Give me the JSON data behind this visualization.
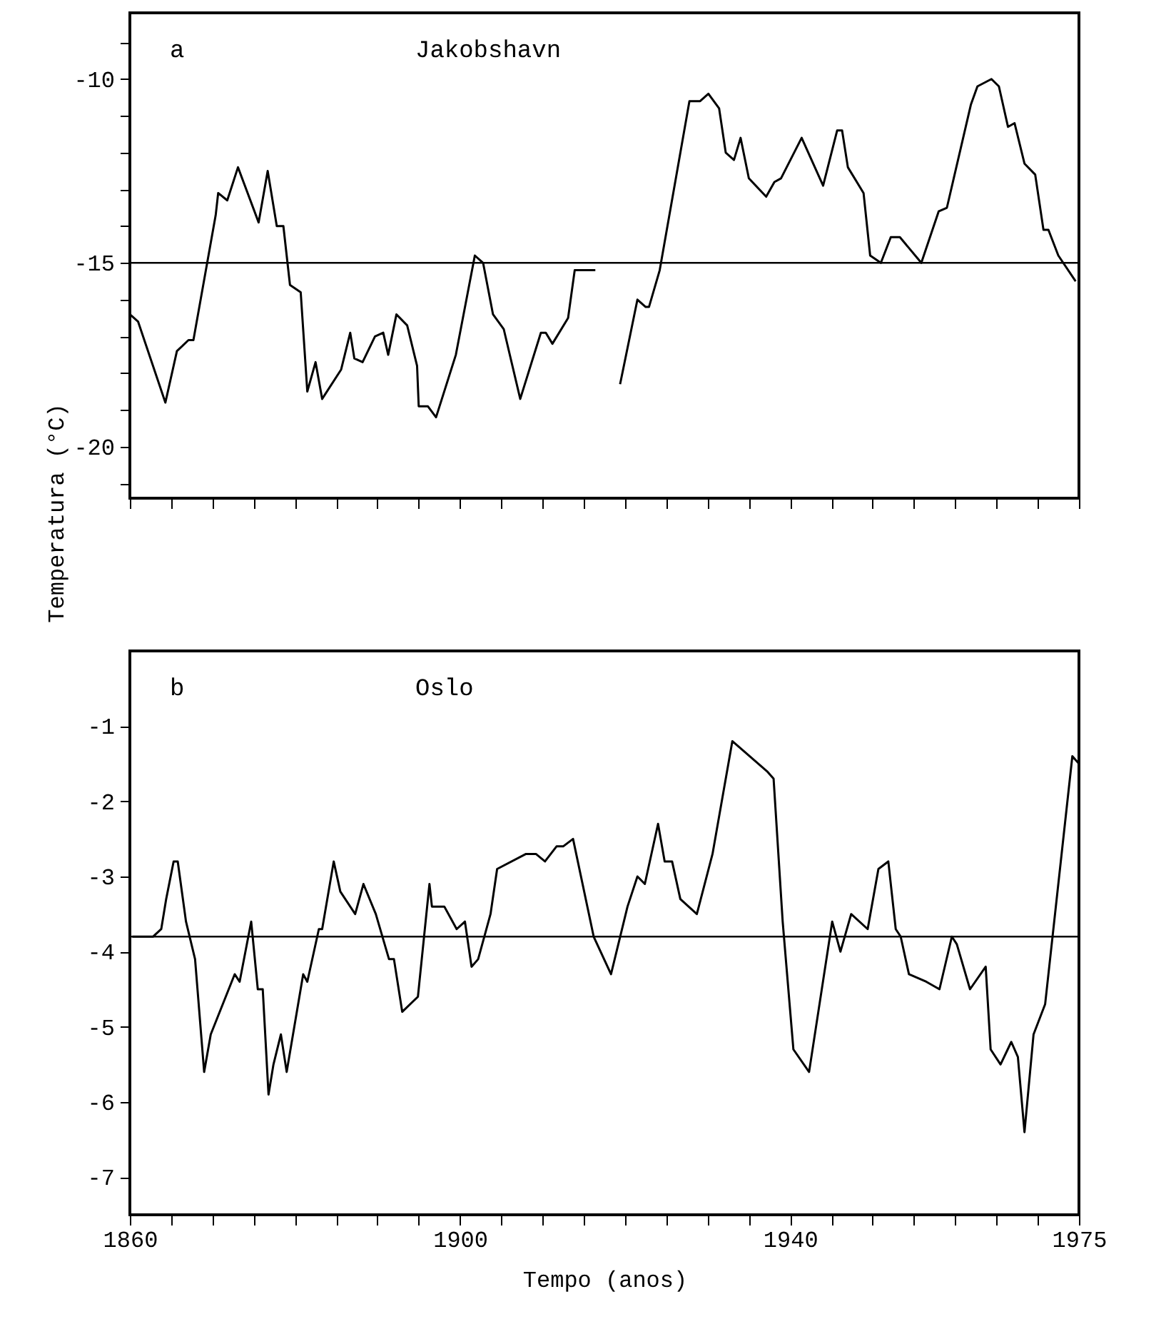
{
  "chart_data": [
    {
      "type": "line",
      "title": "Jakobshavn",
      "annotations": [
        "a"
      ],
      "ylabel": "Temperatura (°C)",
      "xlim": [
        1860,
        1975
      ],
      "xticks": [
        {
          "value": 1860,
          "label": null
        },
        {
          "value": 1865,
          "label": null
        },
        {
          "value": 1870,
          "label": null
        },
        {
          "value": 1875,
          "label": null
        },
        {
          "value": 1880,
          "label": null
        },
        {
          "value": 1885,
          "label": null
        },
        {
          "value": 1890,
          "label": null
        },
        {
          "value": 1895,
          "label": null
        },
        {
          "value": 1900,
          "label": null
        },
        {
          "value": 1905,
          "label": null
        },
        {
          "value": 1910,
          "label": null
        },
        {
          "value": 1915,
          "label": null
        },
        {
          "value": 1920,
          "label": null
        },
        {
          "value": 1925,
          "label": null
        },
        {
          "value": 1930,
          "label": null
        },
        {
          "value": 1935,
          "label": null
        },
        {
          "value": 1940,
          "label": null
        },
        {
          "value": 1945,
          "label": null
        },
        {
          "value": 1950,
          "label": null
        },
        {
          "value": 1955,
          "label": null
        },
        {
          "value": 1960,
          "label": null
        },
        {
          "value": 1965,
          "label": null
        },
        {
          "value": 1970,
          "label": null
        },
        {
          "value": 1975,
          "label": null
        }
      ],
      "ylim": [
        -21.4,
        -8.2
      ],
      "yticks": [
        {
          "value": -21,
          "label": null
        },
        -20,
        {
          "value": -19,
          "label": null
        },
        {
          "value": -18,
          "label": null
        },
        {
          "value": -17,
          "label": null
        },
        {
          "value": -16,
          "label": null
        },
        -15,
        {
          "value": -14,
          "label": null
        },
        {
          "value": -13,
          "label": null
        },
        {
          "value": -12,
          "label": null
        },
        {
          "value": -11,
          "label": null
        },
        -10,
        {
          "value": -9,
          "label": null
        }
      ],
      "tick_labels": "y",
      "grid": false,
      "marker": "none",
      "line_style": "solid",
      "ref_lines": [
        {
          "axis": "y",
          "value": -15,
          "color": "#000000"
        }
      ],
      "x": [
        1860,
        1861,
        1864.3,
        1865.7,
        1867.1,
        1867.7,
        1870.4,
        1870.7,
        1871.8,
        1873.1,
        1875.6,
        1876.7,
        1877.8,
        1878.6,
        1879.4,
        1880.7,
        1881.5,
        1882.5,
        1883.3,
        1885.6,
        1886.7,
        1887.2,
        1888.2,
        1889.7,
        1890.7,
        1891.3,
        1892.3,
        1893.6,
        1894.8,
        1895,
        1896.1,
        1897.1,
        1899.5,
        1901.8,
        1902.8,
        1904,
        1905.3,
        1907.3,
        1909.8,
        1910.4,
        1911.2,
        1913.1,
        1913.9,
        1916.4,
        1918,
        1919.4,
        1921.5,
        1922.5,
        1922.9,
        1924.2,
        1927.8,
        1929.1,
        1930.1,
        1931.4,
        1932.2,
        1933.2,
        1934,
        1935,
        1937.1,
        1938.1,
        1938.9,
        1941.4,
        1944,
        1945.7,
        1946.3,
        1947,
        1948.9,
        1949.7,
        1951,
        1952.2,
        1953.3,
        1955.9,
        1958,
        1959,
        1961.9,
        1962.7,
        1964.4,
        1965.3,
        1966.4,
        1967.2,
        1968.4,
        1969.7,
        1970.7,
        1971.3,
        1972.5,
        1974.6
      ],
      "series": [
        {
          "color": "#000000",
          "values": [
            -16.4,
            -16.6,
            -18.8,
            -17.4,
            -17.1,
            -17.1,
            -13.7,
            -13.1,
            -13.3,
            -12.4,
            -13.9,
            -12.5,
            -14.0,
            -14.0,
            -15.6,
            -15.8,
            -18.5,
            -17.7,
            -18.7,
            -17.9,
            -16.9,
            -17.6,
            -17.7,
            -17.0,
            -16.9,
            -17.5,
            -16.4,
            -16.7,
            -17.8,
            -18.9,
            -18.9,
            -19.2,
            -17.5,
            -14.8,
            -15.0,
            -16.4,
            -16.8,
            -18.7,
            -16.9,
            -16.9,
            -17.2,
            -16.5,
            -15.2,
            -15.2,
            null,
            -18.3,
            -16.0,
            -16.2,
            -16.2,
            -15.2,
            -10.6,
            -10.6,
            -10.4,
            -10.8,
            -12.0,
            -12.2,
            -11.6,
            -12.7,
            -13.2,
            -12.8,
            -12.7,
            -11.6,
            -12.9,
            -11.4,
            -11.4,
            -12.4,
            -13.1,
            -14.8,
            -15.0,
            -14.3,
            -14.3,
            -15.0,
            -13.6,
            -13.5,
            -10.7,
            -10.2,
            -10.0,
            -10.2,
            -11.3,
            -11.2,
            -12.3,
            -12.6,
            -14.1,
            -14.1,
            -14.8,
            -15.5
          ]
        }
      ]
    },
    {
      "type": "line",
      "title": "Oslo",
      "annotations": [
        "b"
      ],
      "xlabel": "Tempo (anos)",
      "xlim": [
        1860,
        1975
      ],
      "xticks": [
        1860,
        {
          "value": 1865,
          "label": null
        },
        {
          "value": 1870,
          "label": null
        },
        {
          "value": 1875,
          "label": null
        },
        {
          "value": 1880,
          "label": null
        },
        {
          "value": 1885,
          "label": null
        },
        {
          "value": 1890,
          "label": null
        },
        {
          "value": 1895,
          "label": null
        },
        1900,
        {
          "value": 1905,
          "label": null
        },
        {
          "value": 1910,
          "label": null
        },
        {
          "value": 1915,
          "label": null
        },
        {
          "value": 1920,
          "label": null
        },
        {
          "value": 1925,
          "label": null
        },
        {
          "value": 1930,
          "label": null
        },
        {
          "value": 1935,
          "label": null
        },
        1940,
        {
          "value": 1945,
          "label": null
        },
        {
          "value": 1950,
          "label": null
        },
        {
          "value": 1955,
          "label": null
        },
        {
          "value": 1960,
          "label": null
        },
        {
          "value": 1965,
          "label": null
        },
        {
          "value": 1970,
          "label": null
        },
        1975
      ],
      "ylim": [
        -7.5,
        0
      ],
      "yticks": [
        -7,
        -6,
        -5,
        -4,
        -3,
        -2,
        -1
      ],
      "grid": false,
      "marker": "none",
      "line_style": "solid",
      "ref_lines": [
        {
          "axis": "y",
          "value": -3.8,
          "color": "#000000"
        }
      ],
      "x": [
        1860.3,
        1862.8,
        1863.8,
        1864.4,
        1865.3,
        1865.8,
        1866.8,
        1867.9,
        1869,
        1869.8,
        1872.7,
        1873.3,
        1874.7,
        1875.5,
        1876.1,
        1876.8,
        1877.4,
        1878.3,
        1879,
        1881,
        1881.5,
        1882.9,
        1883.3,
        1884.7,
        1885.5,
        1887.3,
        1888.3,
        1889.8,
        1891.4,
        1892,
        1893,
        1894.9,
        1896.3,
        1896.6,
        1897.3,
        1898.1,
        1899.6,
        1900.6,
        1901.4,
        1902.2,
        1903.7,
        1904.5,
        1908,
        1909.2,
        1910.3,
        1911.7,
        1912.5,
        1913.7,
        1916.2,
        1918.3,
        1920.3,
        1921.5,
        1922.4,
        1924,
        1924.8,
        1925.7,
        1926.7,
        1928.7,
        1930.6,
        1933,
        1937.2,
        1938,
        1939.1,
        1940.4,
        1942.3,
        1945.1,
        1946.1,
        1947.4,
        1949.4,
        1950.7,
        1951.9,
        1952.8,
        1953.4,
        1954.4,
        1956.5,
        1958.1,
        1959.6,
        1960.2,
        1961.8,
        1963.7,
        1964.3,
        1965.5,
        1966.8,
        1967.6,
        1968.4,
        1969.5,
        1970.9,
        1974.2,
        1975
      ],
      "series": [
        {
          "color": "#000000",
          "values": [
            -3.8,
            -3.8,
            -3.7,
            -3.3,
            -2.8,
            -2.8,
            -3.6,
            -4.1,
            -5.6,
            -5.1,
            -4.3,
            -4.4,
            -3.6,
            -4.5,
            -4.5,
            -5.9,
            -5.5,
            -5.1,
            -5.6,
            -4.3,
            -4.4,
            -3.7,
            -3.7,
            -2.8,
            -3.2,
            -3.5,
            -3.1,
            -3.5,
            -4.1,
            -4.1,
            -4.8,
            -4.6,
            -3.1,
            -3.4,
            -3.4,
            -3.4,
            -3.7,
            -3.6,
            -4.2,
            -4.1,
            -3.5,
            -2.9,
            -2.7,
            -2.7,
            -2.8,
            -2.6,
            -2.6,
            -2.5,
            -3.8,
            -4.3,
            -3.4,
            -3.0,
            -3.1,
            -2.3,
            -2.8,
            -2.8,
            -3.3,
            -3.5,
            -2.7,
            -1.2,
            -1.6,
            -1.7,
            -3.6,
            -5.3,
            -5.6,
            -3.6,
            -4.0,
            -3.5,
            -3.7,
            -2.9,
            -2.8,
            -3.7,
            -3.8,
            -4.3,
            -4.4,
            -4.5,
            -3.8,
            -3.9,
            -4.5,
            -4.2,
            -5.3,
            -5.5,
            -5.2,
            -5.4,
            -6.4,
            -5.1,
            -4.7,
            -1.4,
            -1.5
          ]
        }
      ]
    }
  ]
}
